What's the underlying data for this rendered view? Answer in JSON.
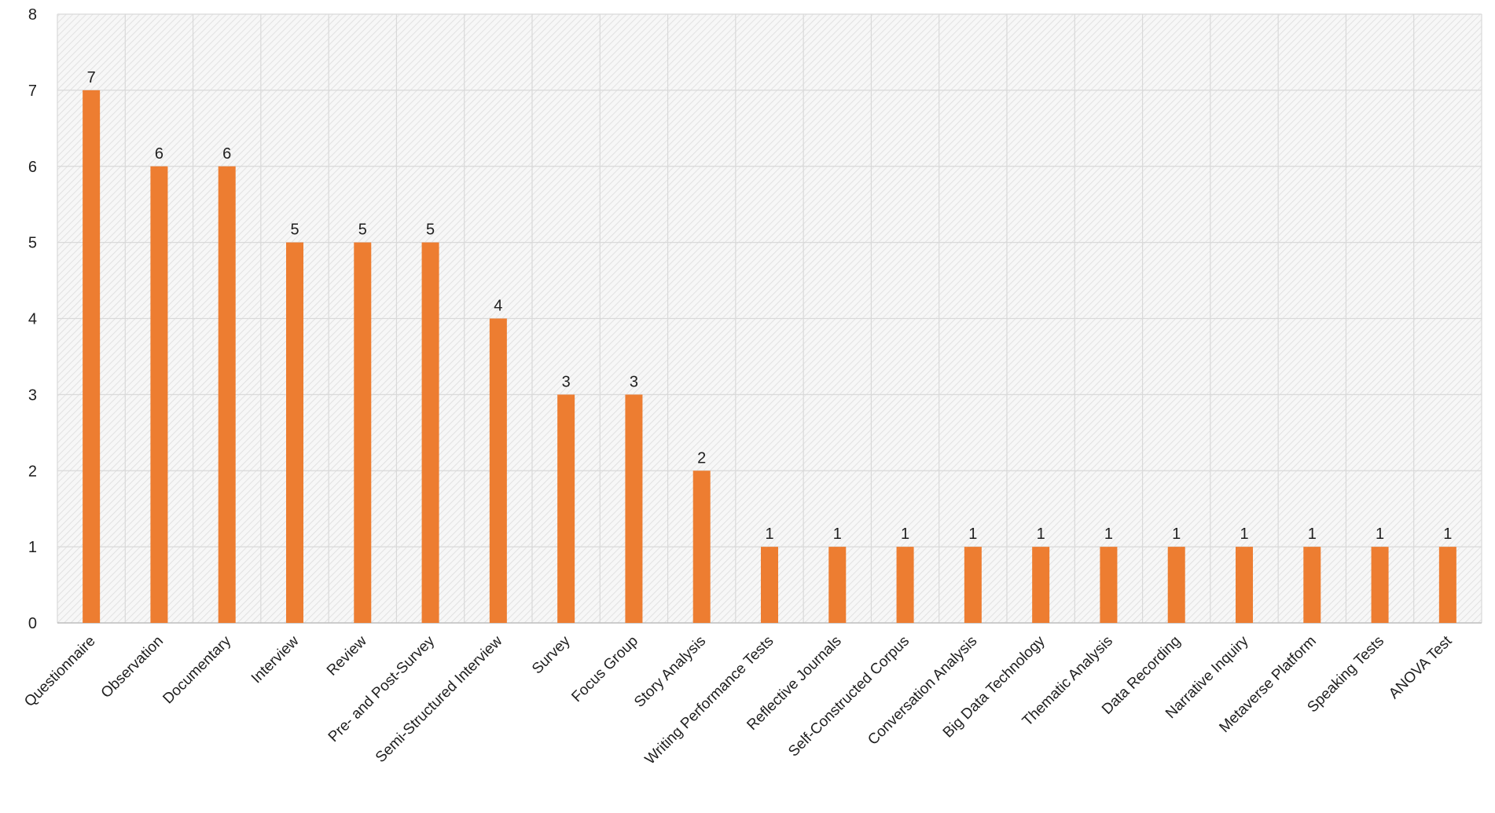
{
  "chart_data": {
    "type": "bar",
    "title": "",
    "xlabel": "",
    "ylabel": "",
    "ylim": [
      0,
      8
    ],
    "yticks": [
      0,
      1,
      2,
      3,
      4,
      5,
      6,
      7,
      8
    ],
    "grid": true,
    "legend": "none",
    "categories": [
      "Questionnaire",
      "Observation",
      "Documentary",
      "Interview",
      "Review",
      "Pre- and Post-Survey",
      "Semi-Structured Interview",
      "Survey",
      "Focus Group",
      "Story Analysis",
      "Writing Performance Tests",
      "Reflective Journals",
      "Self-Constructed Corpus",
      "Conversation Analysis",
      "Big Data Technology",
      "Thematic Analysis",
      "Data Recording",
      "Narrative Inquiry",
      "Metaverse Platform",
      "Speaking Tests",
      "ANOVA Test"
    ],
    "values": [
      7,
      6,
      6,
      5,
      5,
      5,
      4,
      3,
      3,
      2,
      1,
      1,
      1,
      1,
      1,
      1,
      1,
      1,
      1,
      1,
      1
    ],
    "data_labels": true,
    "colors": {
      "bar": "#ED7D31",
      "grid": "#d9d9d9",
      "hatch": "#dcdcdc",
      "plot_background": "#f7f7f7"
    }
  }
}
